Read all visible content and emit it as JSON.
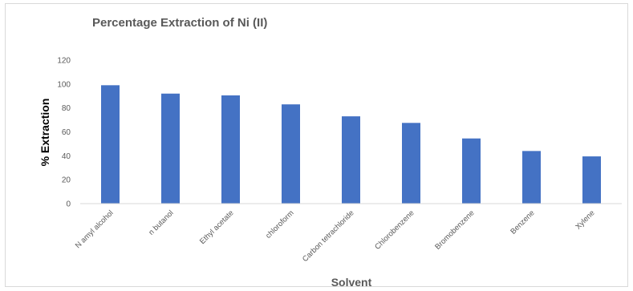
{
  "chart_data": {
    "type": "bar",
    "title": "Percentage Extraction of Ni (II)",
    "xlabel": "Solvent",
    "ylabel": "% Extraction",
    "categories": [
      "N amyl alcohol",
      "n butanol",
      "Ethyl acetate",
      "chloroform",
      "Carbon tetrachloride",
      "Chlorobenzene",
      "Bromobenzene",
      "Benzene",
      "Xylene"
    ],
    "values": [
      99,
      92,
      90.5,
      83,
      73,
      67.5,
      54.5,
      44,
      39.5
    ],
    "ylim": [
      0,
      120
    ],
    "yticks": [
      0,
      20,
      40,
      60,
      80,
      100,
      120
    ],
    "grid": false,
    "legend": "none",
    "bar_color": "#4472c4"
  }
}
